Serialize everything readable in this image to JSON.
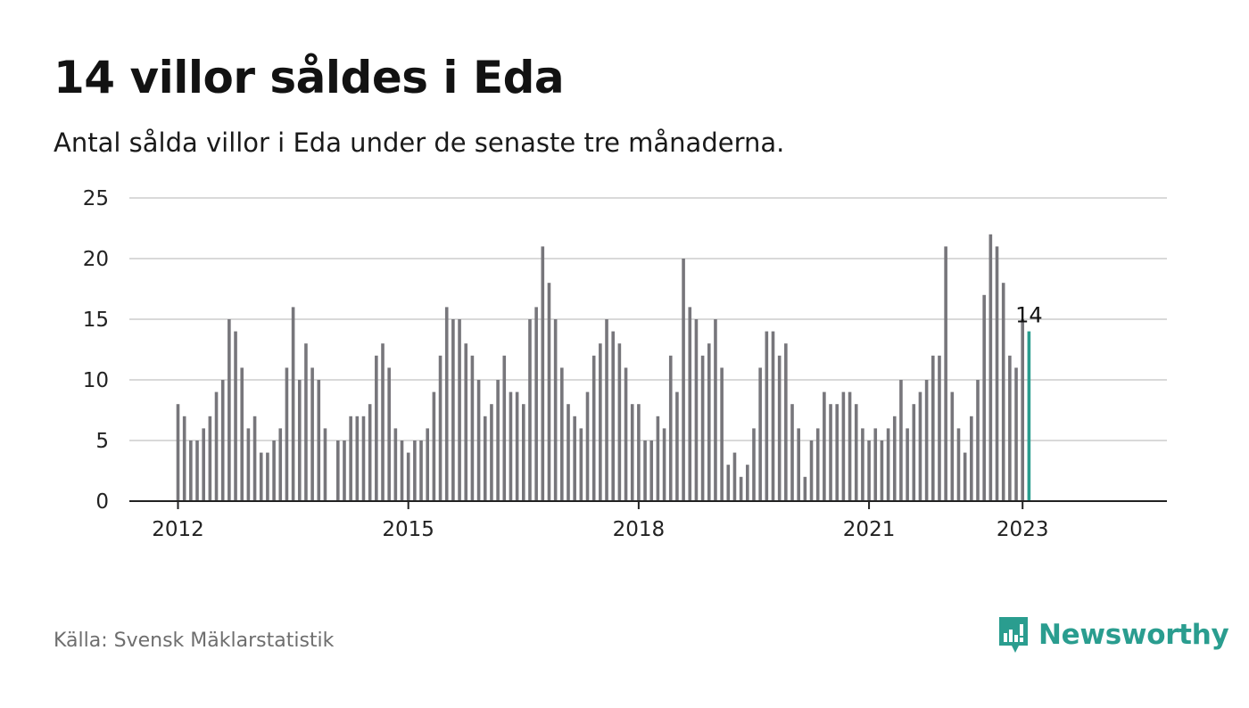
{
  "header": {
    "title": "14 villor såldes i Eda",
    "subtitle": "Antal sålda villor i Eda under de senaste tre månaderna."
  },
  "footer": {
    "source": "Källa: Svensk Mäklarstatistik",
    "brand": "Newsworthy",
    "brand_icon": "bar-chart-speech-bubble-icon"
  },
  "colors": {
    "bar": "#77767b",
    "highlight": "#2a9d8f",
    "grid": "#d9d9d9",
    "axis": "#222222",
    "brand": "#2a9d8f"
  },
  "chart_data": {
    "type": "bar",
    "title": "14 villor såldes i Eda",
    "subtitle": "Antal sålda villor i Eda under de senaste tre månaderna.",
    "xlabel": "",
    "ylabel": "",
    "ylim": [
      0,
      25
    ],
    "yticks": [
      0,
      5,
      10,
      15,
      20,
      25
    ],
    "xticks": [
      "2012",
      "2015",
      "2018",
      "2021",
      "2023"
    ],
    "x_start": "2012-01",
    "x_end": "2023-01",
    "grid": true,
    "legend": "none",
    "highlight_label": "14",
    "values": [
      8,
      7,
      5,
      5,
      6,
      7,
      9,
      10,
      15,
      14,
      11,
      6,
      7,
      4,
      4,
      5,
      6,
      11,
      16,
      10,
      13,
      11,
      10,
      6,
      null,
      5,
      5,
      7,
      7,
      7,
      8,
      12,
      13,
      11,
      6,
      5,
      4,
      5,
      5,
      6,
      9,
      12,
      16,
      15,
      15,
      13,
      12,
      10,
      7,
      8,
      10,
      12,
      9,
      9,
      8,
      15,
      16,
      21,
      18,
      15,
      11,
      8,
      7,
      6,
      9,
      12,
      13,
      15,
      14,
      13,
      11,
      8,
      8,
      5,
      5,
      7,
      6,
      12,
      9,
      20,
      16,
      15,
      12,
      13,
      15,
      11,
      3,
      4,
      2,
      3,
      6,
      11,
      14,
      14,
      12,
      13,
      8,
      6,
      2,
      5,
      6,
      9,
      8,
      8,
      9,
      9,
      8,
      6,
      5,
      6,
      5,
      6,
      7,
      10,
      6,
      8,
      9,
      10,
      12,
      12,
      21,
      9,
      6,
      4,
      7,
      10,
      17,
      22,
      21,
      18,
      12,
      11,
      15,
      14
    ]
  }
}
